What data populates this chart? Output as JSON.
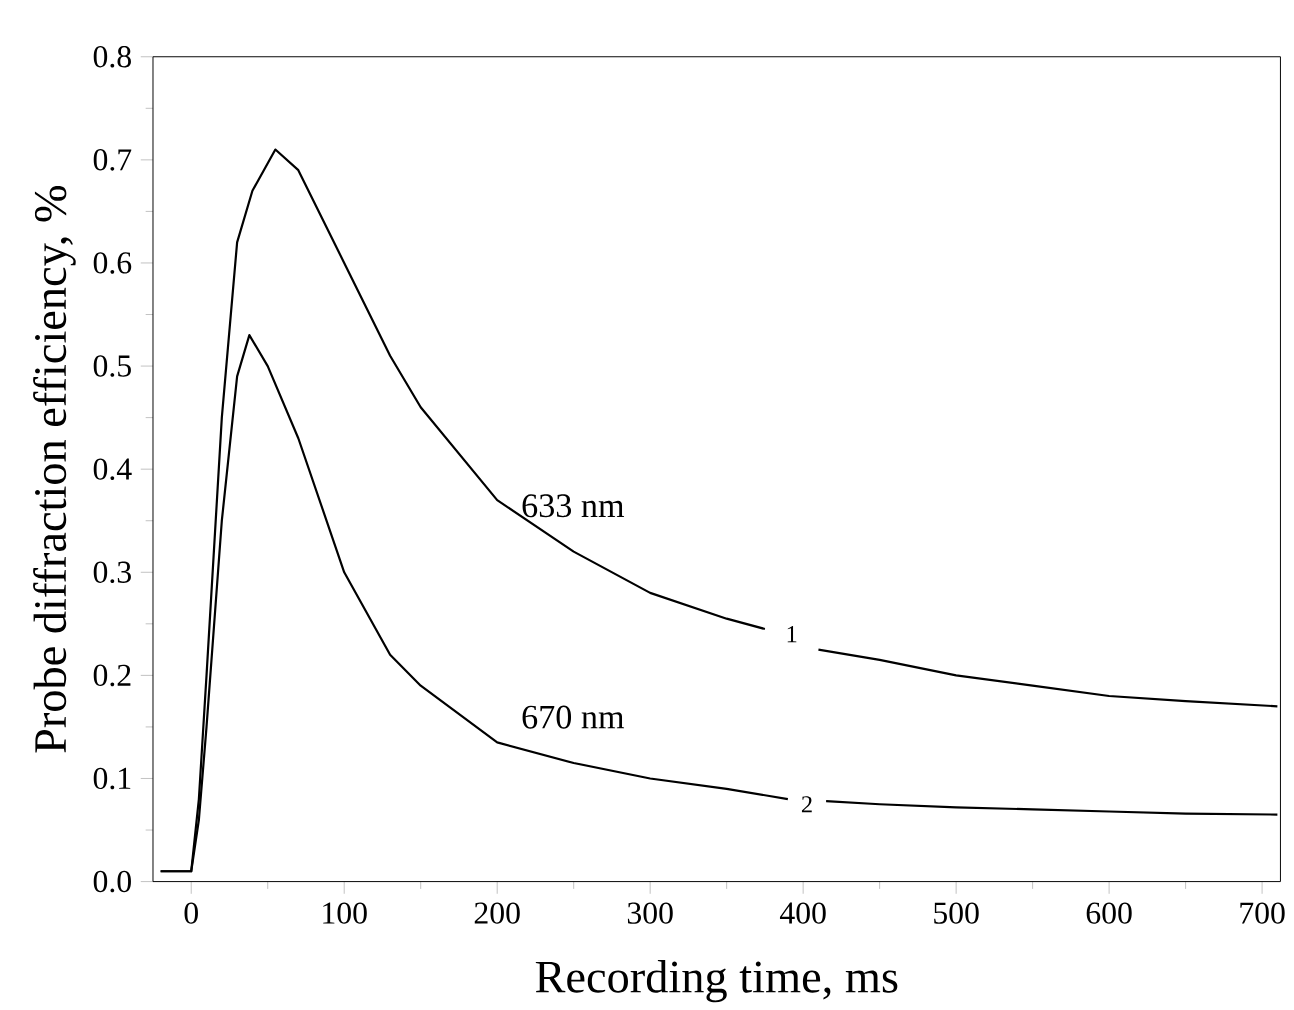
{
  "chart_data": {
    "type": "line",
    "xlabel": "Recording time, ms",
    "ylabel": "Probe diffraction efficiency, %",
    "xlim": [
      -25,
      712
    ],
    "xticks": [
      0,
      100,
      200,
      300,
      400,
      500,
      600,
      700
    ],
    "ylim": [
      0,
      0.8
    ],
    "yticks": [
      {
        "value": 0,
        "label": "0.0"
      },
      0.1,
      0.2,
      0.3,
      0.4,
      0.5,
      0.6,
      0.7,
      0.8
    ],
    "grid": false,
    "marker": "none",
    "line_style": "solid",
    "series": [
      {
        "name": "633 nm",
        "color": "#000000",
        "x": [
          -20,
          -10,
          0,
          5,
          10,
          20,
          30,
          40,
          55,
          70,
          100,
          130,
          150,
          200,
          250,
          300,
          350,
          375,
          385,
          410,
          450,
          500,
          550,
          600,
          650,
          710
        ],
        "values": [
          0.01,
          0.01,
          0.01,
          0.08,
          0.2,
          0.45,
          0.62,
          0.67,
          0.71,
          0.69,
          0.6,
          0.51,
          0.46,
          0.37,
          0.32,
          0.28,
          0.255,
          0.245,
          null,
          0.225,
          0.215,
          0.2,
          0.19,
          0.18,
          0.175,
          0.17
        ]
      },
      {
        "name": "670 nm",
        "color": "#000000",
        "x": [
          -20,
          -10,
          0,
          5,
          10,
          20,
          30,
          38,
          50,
          70,
          100,
          130,
          150,
          200,
          250,
          300,
          350,
          390,
          400,
          415,
          450,
          500,
          550,
          600,
          650,
          710
        ],
        "values": [
          0.01,
          0.01,
          0.01,
          0.06,
          0.15,
          0.35,
          0.49,
          0.53,
          0.5,
          0.43,
          0.3,
          0.22,
          0.19,
          0.135,
          0.115,
          0.1,
          0.09,
          0.08,
          null,
          0.078,
          0.075,
          0.072,
          0.07,
          0.068,
          0.066,
          0.065
        ]
      }
    ],
    "annotations": [
      "1",
      "2"
    ]
  }
}
